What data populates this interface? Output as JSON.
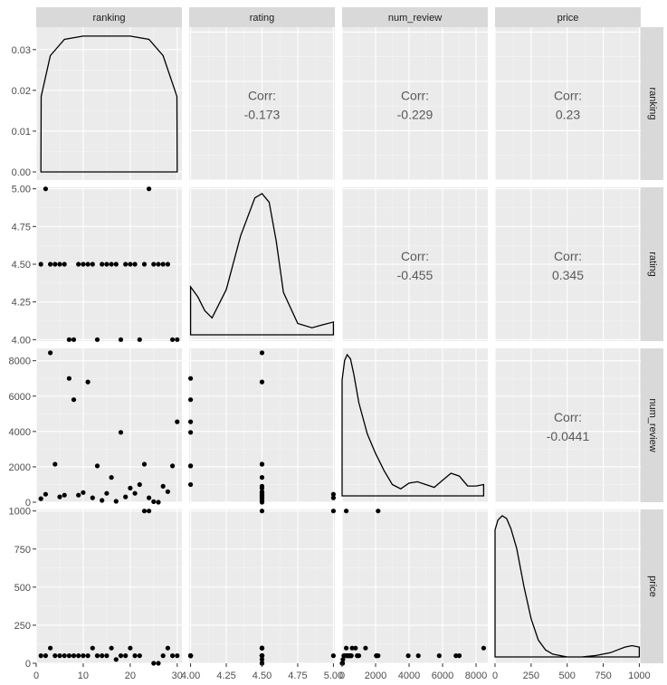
{
  "chart_data": {
    "type": "scatter",
    "plot_kind": "pairs-matrix",
    "variables": [
      "ranking",
      "rating",
      "num_review",
      "price"
    ],
    "axes": {
      "ranking": {
        "lim": [
          0,
          31
        ],
        "ticks": [
          0,
          10,
          20,
          30
        ],
        "tick_labels": [
          "0",
          "10",
          "20",
          "30"
        ]
      },
      "rating": {
        "lim": [
          3.99,
          5.01
        ],
        "ticks": [
          4.0,
          4.25,
          4.5,
          4.75,
          5.0
        ],
        "tick_labels": [
          "4.00",
          "4.25",
          "4.50",
          "4.75",
          "5.00"
        ]
      },
      "num_review": {
        "lim": [
          0,
          8700
        ],
        "ticks": [
          0,
          2000,
          4000,
          6000,
          8000
        ],
        "tick_labels": [
          "0",
          "2000",
          "4000",
          "6000",
          "8000"
        ]
      },
      "price": {
        "lim": [
          0,
          1010
        ],
        "ticks": [
          0,
          250,
          500,
          750,
          1000
        ],
        "tick_labels": [
          "0",
          "250",
          "500",
          "750",
          "1000"
        ]
      }
    },
    "ranking_density_axis": {
      "lim": [
        -0.002,
        0.0355
      ],
      "ticks": [
        0,
        0.01,
        0.02,
        0.03
      ],
      "tick_labels": [
        "0.00",
        "0.01",
        "0.02",
        "0.03"
      ]
    },
    "correlations": [
      {
        "row": "ranking",
        "col": "rating",
        "label": "Corr:",
        "value": "-0.173"
      },
      {
        "row": "ranking",
        "col": "num_review",
        "label": "Corr:",
        "value": "-0.229"
      },
      {
        "row": "ranking",
        "col": "price",
        "label": "Corr:",
        "value": "0.23"
      },
      {
        "row": "rating",
        "col": "num_review",
        "label": "Corr:",
        "value": "-0.455"
      },
      {
        "row": "rating",
        "col": "price",
        "label": "Corr:",
        "value": "0.345"
      },
      {
        "row": "num_review",
        "col": "price",
        "label": "Corr:",
        "value": "-0.0441"
      }
    ],
    "points": [
      {
        "ranking": 1,
        "rating": 4.5,
        "num_review": 200,
        "price": 50
      },
      {
        "ranking": 2,
        "rating": 5.0,
        "num_review": 450,
        "price": 50
      },
      {
        "ranking": 3,
        "rating": 4.5,
        "num_review": 8450,
        "price": 100
      },
      {
        "ranking": 4,
        "rating": 4.5,
        "num_review": 2150,
        "price": 50
      },
      {
        "ranking": 5,
        "rating": 4.5,
        "num_review": 300,
        "price": 50
      },
      {
        "ranking": 6,
        "rating": 4.5,
        "num_review": 400,
        "price": 50
      },
      {
        "ranking": 7,
        "rating": 4.0,
        "num_review": 7000,
        "price": 50
      },
      {
        "ranking": 8,
        "rating": 4.0,
        "num_review": 5800,
        "price": 50
      },
      {
        "ranking": 9,
        "rating": 4.5,
        "num_review": 400,
        "price": 50
      },
      {
        "ranking": 10,
        "rating": 4.5,
        "num_review": 550,
        "price": 50
      },
      {
        "ranking": 11,
        "rating": 4.5,
        "num_review": 6800,
        "price": 50
      },
      {
        "ranking": 12,
        "rating": 4.5,
        "num_review": 250,
        "price": 100
      },
      {
        "ranking": 13,
        "rating": 4.0,
        "num_review": 2050,
        "price": 50
      },
      {
        "ranking": 14,
        "rating": 4.5,
        "num_review": 100,
        "price": 50
      },
      {
        "ranking": 15,
        "rating": 4.5,
        "num_review": 500,
        "price": 50
      },
      {
        "ranking": 16,
        "rating": 4.5,
        "num_review": 1400,
        "price": 100
      },
      {
        "ranking": 17,
        "rating": 4.5,
        "num_review": 50,
        "price": 25
      },
      {
        "ranking": 18,
        "rating": 4.0,
        "num_review": 3950,
        "price": 50
      },
      {
        "ranking": 19,
        "rating": 4.5,
        "num_review": 300,
        "price": 50
      },
      {
        "ranking": 20,
        "rating": 4.5,
        "num_review": 800,
        "price": 100
      },
      {
        "ranking": 21,
        "rating": 4.5,
        "num_review": 500,
        "price": 50
      },
      {
        "ranking": 22,
        "rating": 4.0,
        "num_review": 1000,
        "price": 50
      },
      {
        "ranking": 23,
        "rating": 4.5,
        "num_review": 2150,
        "price": 1000
      },
      {
        "ranking": 24,
        "rating": 5.0,
        "num_review": 250,
        "price": 1000
      },
      {
        "ranking": 25,
        "rating": 4.5,
        "num_review": 30,
        "price": 0
      },
      {
        "ranking": 26,
        "rating": 4.5,
        "num_review": 0,
        "price": 0
      },
      {
        "ranking": 27,
        "rating": 4.5,
        "num_review": 900,
        "price": 50
      },
      {
        "ranking": 28,
        "rating": 4.5,
        "num_review": 600,
        "price": 100
      },
      {
        "ranking": 29,
        "rating": 4.0,
        "num_review": 2050,
        "price": 50
      },
      {
        "ranking": 30,
        "rating": 4.0,
        "num_review": 4550,
        "price": 50
      }
    ],
    "densities": {
      "ranking": {
        "x": [
          1,
          1.05,
          3,
          6,
          10,
          20,
          24,
          27,
          29.95,
          30
        ],
        "y": [
          0,
          0.0185,
          0.0285,
          0.0325,
          0.0333,
          0.0333,
          0.0325,
          0.0285,
          0.0185,
          0
        ]
      },
      "rating": {
        "x": [
          4.0,
          4.05,
          4.1,
          4.15,
          4.25,
          4.35,
          4.45,
          4.5,
          4.55,
          4.6,
          4.65,
          4.75,
          4.85,
          4.92,
          5.0
        ],
        "y": [
          0.34,
          0.27,
          0.17,
          0.12,
          0.32,
          0.7,
          0.97,
          1.0,
          0.94,
          0.66,
          0.3,
          0.08,
          0.05,
          0.07,
          0.09
        ]
      },
      "num_review": {
        "x": [
          0,
          150,
          300,
          500,
          700,
          1000,
          1500,
          2000,
          2500,
          3000,
          3500,
          4000,
          4500,
          5000,
          5500,
          6000,
          6500,
          7000,
          7500,
          8000,
          8450
        ],
        "y": [
          0.82,
          0.96,
          1.0,
          0.97,
          0.86,
          0.66,
          0.44,
          0.3,
          0.18,
          0.08,
          0.05,
          0.09,
          0.1,
          0.08,
          0.06,
          0.11,
          0.16,
          0.14,
          0.07,
          0.07,
          0.08
        ]
      },
      "price": {
        "x": [
          0,
          20,
          50,
          80,
          110,
          150,
          200,
          250,
          300,
          350,
          400,
          500,
          600,
          700,
          800,
          850,
          900,
          950,
          1000
        ],
        "y": [
          0.9,
          0.97,
          1.0,
          0.98,
          0.91,
          0.77,
          0.5,
          0.27,
          0.12,
          0.05,
          0.02,
          0.0,
          0.0,
          0.01,
          0.03,
          0.05,
          0.07,
          0.08,
          0.07
        ]
      }
    }
  }
}
